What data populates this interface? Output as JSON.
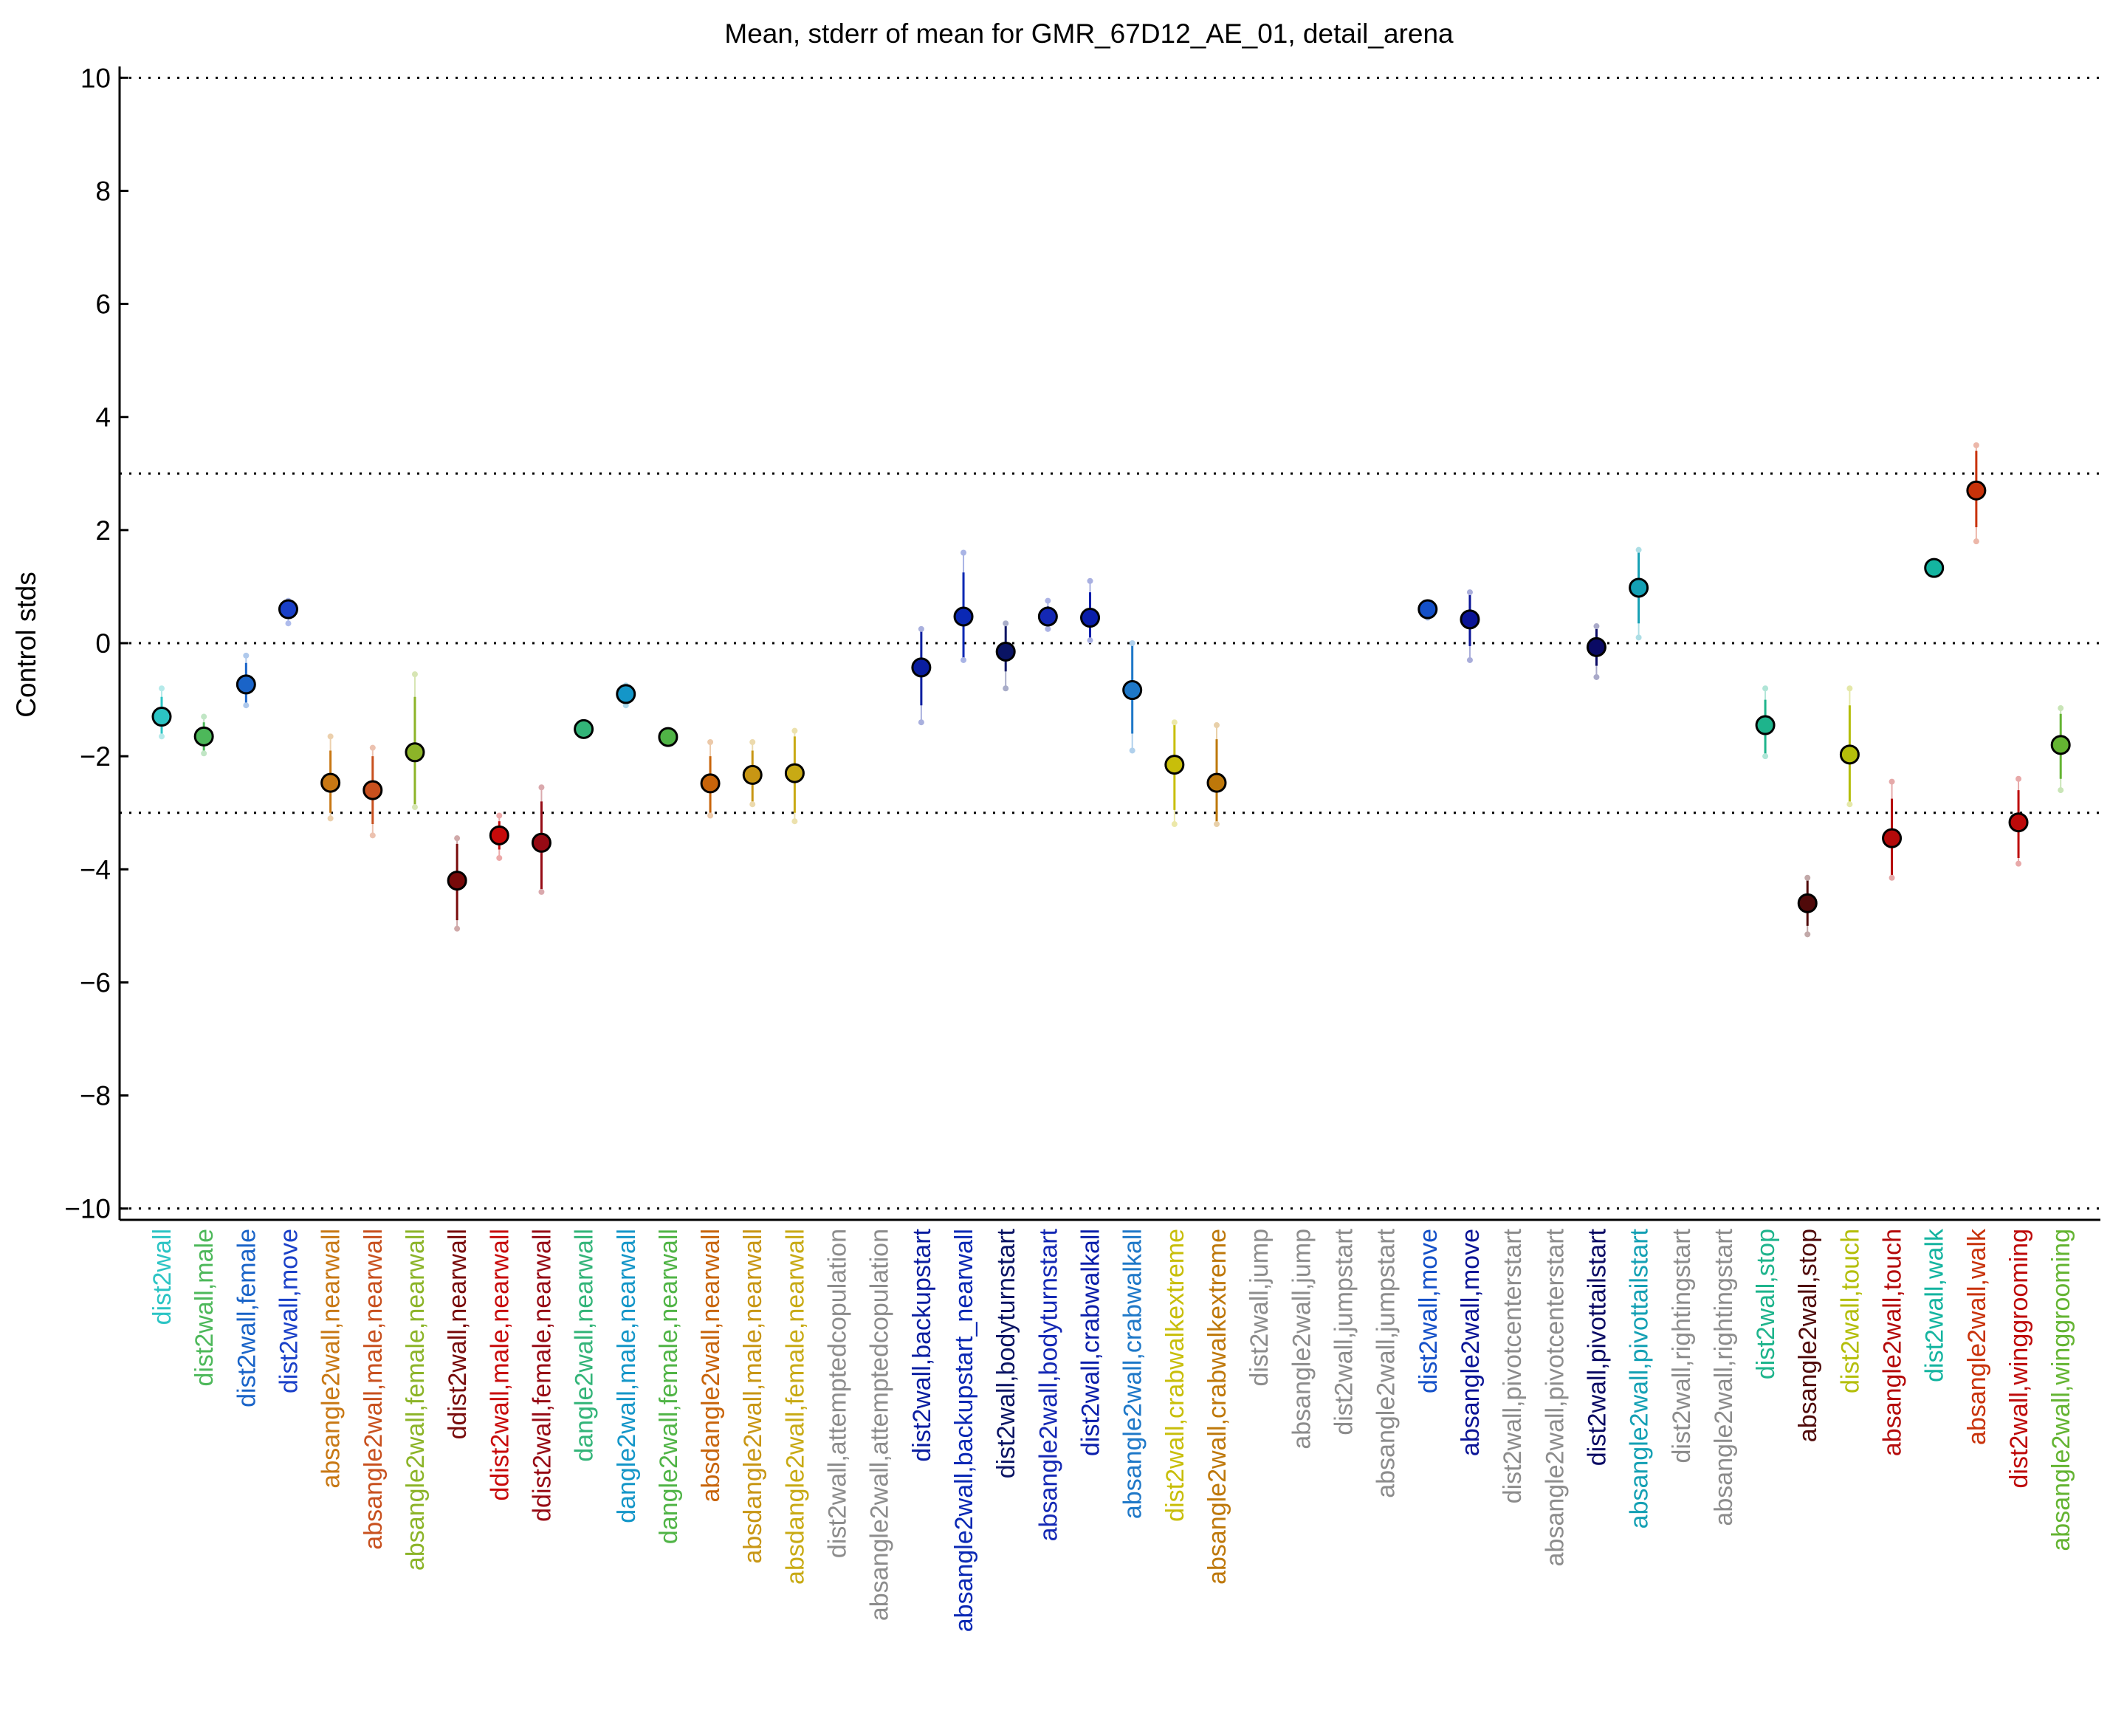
{
  "chart_data": {
    "type": "scatter",
    "title": "Mean, stderr of mean for GMR_67D12_AE_01, detail_arena",
    "xlabel": "",
    "ylabel": "Control stds",
    "ylim": [
      -10.2,
      10.2
    ],
    "yticks": [
      10,
      8,
      6,
      4,
      2,
      0,
      -2,
      -4,
      -6,
      -8,
      -10
    ],
    "ytick_labels": [
      "10",
      "8",
      "6",
      "4",
      "2",
      "0",
      "−2",
      "−4",
      "−6",
      "−8",
      "−10"
    ],
    "reference_lines": [
      10,
      3,
      0,
      -3,
      -10
    ],
    "grid": false,
    "categories": [
      {
        "label": "dist2wall",
        "color": "#2cc4c4",
        "mean": -1.3,
        "se_low": -1.6,
        "se_high": -0.95,
        "pt_low": -1.65,
        "pt_high": -0.8
      },
      {
        "label": "dist2wall,male",
        "color": "#4db85a",
        "mean": -1.65,
        "se_low": -1.9,
        "se_high": -1.4,
        "pt_low": -1.95,
        "pt_high": -1.3
      },
      {
        "label": "dist2wall,female",
        "color": "#1a64c8",
        "mean": -0.73,
        "se_low": -1.1,
        "se_high": -0.35,
        "pt_low": -1.1,
        "pt_high": -0.22
      },
      {
        "label": "dist2wall,move",
        "color": "#1a40c8",
        "mean": 0.6,
        "se_low": 0.45,
        "se_high": 0.7,
        "pt_low": 0.35,
        "pt_high": 0.75
      },
      {
        "label": "absangle2wall,nearwall",
        "color": "#c87814",
        "mean": -2.47,
        "se_low": -3.0,
        "se_high": -1.9,
        "pt_low": -3.1,
        "pt_high": -1.65
      },
      {
        "label": "absangle2wall,male,nearwall",
        "color": "#c8501e",
        "mean": -2.6,
        "se_low": -3.2,
        "se_high": -2.0,
        "pt_low": -3.4,
        "pt_high": -1.85
      },
      {
        "label": "absangle2wall,female,nearwall",
        "color": "#8cb428",
        "mean": -1.93,
        "se_low": -2.9,
        "se_high": -0.95,
        "pt_low": -2.9,
        "pt_high": -0.55
      },
      {
        "label": "ddist2wall,nearwall",
        "color": "#780a0a",
        "mean": -4.2,
        "se_low": -4.9,
        "se_high": -3.55,
        "pt_low": -5.05,
        "pt_high": -3.45
      },
      {
        "label": "ddist2wall,male,nearwall",
        "color": "#c80a0a",
        "mean": -3.4,
        "se_low": -3.65,
        "se_high": -3.15,
        "pt_low": -3.8,
        "pt_high": -3.05
      },
      {
        "label": "ddist2wall,female,nearwall",
        "color": "#960a14",
        "mean": -3.53,
        "se_low": -4.35,
        "se_high": -2.8,
        "pt_low": -4.4,
        "pt_high": -2.55
      },
      {
        "label": "dangle2wall,nearwall",
        "color": "#32b478",
        "mean": -1.52,
        "se_low": -1.6,
        "se_high": -1.45,
        "pt_low": -1.62,
        "pt_high": -1.42
      },
      {
        "label": "dangle2wall,male,nearwall",
        "color": "#1496c8",
        "mean": -0.9,
        "se_low": -1.05,
        "se_high": -0.8,
        "pt_low": -1.1,
        "pt_high": -0.75
      },
      {
        "label": "dangle2wall,female,nearwall",
        "color": "#50b446",
        "mean": -1.66,
        "se_low": -1.75,
        "se_high": -1.58,
        "pt_low": -1.78,
        "pt_high": -1.55
      },
      {
        "label": "absdangle2wall,nearwall",
        "color": "#c8640a",
        "mean": -2.48,
        "se_low": -3.0,
        "se_high": -2.0,
        "pt_low": -3.05,
        "pt_high": -1.75
      },
      {
        "label": "absdangle2wall,male,nearwall",
        "color": "#c89614",
        "mean": -2.33,
        "se_low": -2.8,
        "se_high": -1.9,
        "pt_low": -2.85,
        "pt_high": -1.75
      },
      {
        "label": "absdangle2wall,female,nearwall",
        "color": "#c8aa14",
        "mean": -2.3,
        "se_low": -3.0,
        "se_high": -1.65,
        "pt_low": -3.15,
        "pt_high": -1.55
      },
      {
        "label": "dist2wall,attemptedcopulation",
        "color": "#8c8c8c",
        "mean": null
      },
      {
        "label": "absangle2wall,attemptedcopulation",
        "color": "#8c8c8c",
        "mean": null
      },
      {
        "label": "dist2wall,backupstart",
        "color": "#0a1ea0",
        "mean": -0.43,
        "se_low": -1.1,
        "se_high": 0.25,
        "pt_low": -1.4,
        "pt_high": 0.25
      },
      {
        "label": "absangle2wall,backupstart_nearwall",
        "color": "#0a28b4",
        "mean": 0.47,
        "se_low": -0.3,
        "se_high": 1.25,
        "pt_low": -0.3,
        "pt_high": 1.6
      },
      {
        "label": "dist2wall,bodyturnstart",
        "color": "#0a1464",
        "mean": -0.15,
        "se_low": -0.5,
        "se_high": 0.3,
        "pt_low": -0.8,
        "pt_high": 0.35
      },
      {
        "label": "absangle2wall,bodyturnstart",
        "color": "#1428b4",
        "mean": 0.47,
        "se_low": 0.3,
        "se_high": 0.65,
        "pt_low": 0.25,
        "pt_high": 0.75
      },
      {
        "label": "dist2wall,crabwalkall",
        "color": "#0a1eaa",
        "mean": 0.45,
        "se_low": 0.05,
        "se_high": 0.9,
        "pt_low": 0.05,
        "pt_high": 1.1
      },
      {
        "label": "absangle2wall,crabwalkall",
        "color": "#1e78c8",
        "mean": -0.83,
        "se_low": -1.6,
        "se_high": 0.0,
        "pt_low": -1.9,
        "pt_high": 0.0
      },
      {
        "label": "dist2wall,crabwalkextreme",
        "color": "#c8be0a",
        "mean": -2.15,
        "se_low": -2.95,
        "se_high": -1.4,
        "pt_low": -3.2,
        "pt_high": -1.4
      },
      {
        "label": "absangle2wall,crabwalkextreme",
        "color": "#be780a",
        "mean": -2.47,
        "se_low": -3.2,
        "se_high": -1.7,
        "pt_low": -3.2,
        "pt_high": -1.45
      },
      {
        "label": "dist2wall,jump",
        "color": "#8c8c8c",
        "mean": null
      },
      {
        "label": "absangle2wall,jump",
        "color": "#8c8c8c",
        "mean": null
      },
      {
        "label": "dist2wall,jumpstart",
        "color": "#8c8c8c",
        "mean": null
      },
      {
        "label": "absangle2wall,jumpstart",
        "color": "#8c8c8c",
        "mean": null
      },
      {
        "label": "dist2wall,move",
        "color": "#1450c8",
        "mean": 0.6,
        "se_low": 0.5,
        "se_high": 0.7,
        "pt_low": 0.45,
        "pt_high": 0.72
      },
      {
        "label": "absangle2wall,move",
        "color": "#0a1496",
        "mean": 0.42,
        "se_low": -0.05,
        "se_high": 0.85,
        "pt_low": -0.3,
        "pt_high": 0.9
      },
      {
        "label": "dist2wall,pivotcenterstart",
        "color": "#8c8c8c",
        "mean": null
      },
      {
        "label": "absangle2wall,pivotcenterstart",
        "color": "#8c8c8c",
        "mean": null
      },
      {
        "label": "dist2wall,pivottailstart",
        "color": "#0a0a64",
        "mean": -0.07,
        "se_low": -0.4,
        "se_high": 0.25,
        "pt_low": -0.6,
        "pt_high": 0.3
      },
      {
        "label": "absangle2wall,pivottailstart",
        "color": "#14a0b4",
        "mean": 0.98,
        "se_low": 0.35,
        "se_high": 1.6,
        "pt_low": 0.1,
        "pt_high": 1.65
      },
      {
        "label": "dist2wall,rightingstart",
        "color": "#8c8c8c",
        "mean": null
      },
      {
        "label": "absangle2wall,rightingstart",
        "color": "#8c8c8c",
        "mean": null
      },
      {
        "label": "dist2wall,stop",
        "color": "#1eb48c",
        "mean": -1.45,
        "se_low": -2.0,
        "se_high": -1.0,
        "pt_low": -2.0,
        "pt_high": -0.8
      },
      {
        "label": "absangle2wall,stop",
        "color": "#500a0a",
        "mean": -4.6,
        "se_low": -5.0,
        "se_high": -4.2,
        "pt_low": -5.15,
        "pt_high": -4.15
      },
      {
        "label": "dist2wall,touch",
        "color": "#b4be0a",
        "mean": -1.97,
        "se_low": -2.85,
        "se_high": -1.1,
        "pt_low": -2.85,
        "pt_high": -0.8
      },
      {
        "label": "absangle2wall,touch",
        "color": "#b40a0a",
        "mean": -3.45,
        "se_low": -4.15,
        "se_high": -2.75,
        "pt_low": -4.15,
        "pt_high": -2.45
      },
      {
        "label": "dist2wall,walk",
        "color": "#14b4a0",
        "mean": 1.33,
        "se_low": 1.28,
        "se_high": 1.38,
        "pt_low": 1.25,
        "pt_high": 1.4
      },
      {
        "label": "absangle2wall,walk",
        "color": "#c8320a",
        "mean": 2.7,
        "se_low": 2.05,
        "se_high": 3.4,
        "pt_low": 1.8,
        "pt_high": 3.5
      },
      {
        "label": "dist2wall,winggrooming",
        "color": "#be0a0a",
        "mean": -3.17,
        "se_low": -3.8,
        "se_high": -2.6,
        "pt_low": -3.9,
        "pt_high": -2.4
      },
      {
        "label": "absangle2wall,winggrooming",
        "color": "#64b432",
        "mean": -1.8,
        "se_low": -2.4,
        "se_high": -1.25,
        "pt_low": -2.6,
        "pt_high": -1.15
      }
    ]
  }
}
